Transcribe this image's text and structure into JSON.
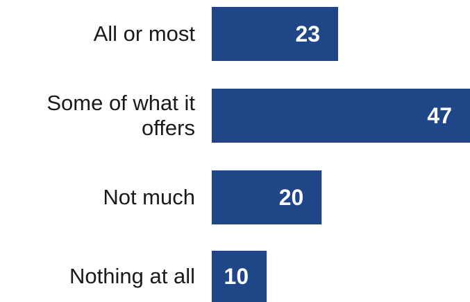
{
  "chart_data": {
    "type": "bar",
    "orientation": "horizontal",
    "categories": [
      "All or most",
      "Some of what it offers",
      "Not much",
      "Nothing at all"
    ],
    "category_lines": [
      [
        "All or most"
      ],
      [
        "Some of what it",
        "offers"
      ],
      [
        "Not much"
      ],
      [
        "Nothing at all"
      ]
    ],
    "values": [
      23,
      47,
      20,
      10
    ],
    "value_labels": [
      "23",
      "47",
      "20",
      "10"
    ],
    "title": "",
    "xlabel": "",
    "ylabel": "",
    "grid": false,
    "legend": "none",
    "bar_color": "#1f4686",
    "value_label_color": "#ffffff",
    "label_color": "#1a1a1a"
  }
}
